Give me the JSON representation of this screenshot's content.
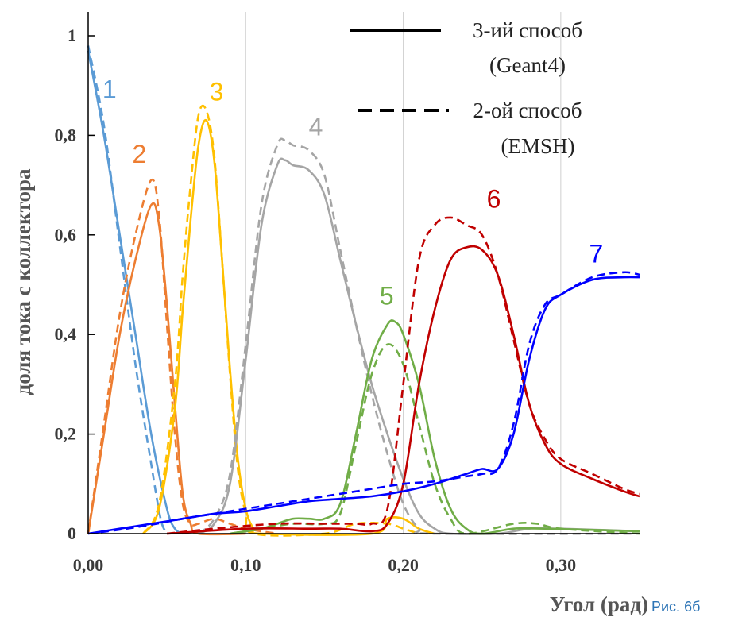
{
  "chart_data": {
    "type": "line",
    "xlabel": "Угол (рад)",
    "ylabel": "доля тока с коллектора",
    "caption": "Рис. 6б",
    "xlim": [
      0,
      0.35
    ],
    "ylim": [
      0,
      1.02
    ],
    "x_ticks": [
      0.0,
      0.1,
      0.2,
      0.3
    ],
    "x_tick_labels": [
      "0,00",
      "0,10",
      "0,20",
      "0,30"
    ],
    "y_ticks": [
      0,
      0.2,
      0.4,
      0.6,
      0.8,
      1.0
    ],
    "y_tick_labels": [
      "0",
      "0,2",
      "0,4",
      "0,6",
      "0,8",
      "1"
    ],
    "grid": "vertical",
    "legend": {
      "position": "top-right",
      "entries": [
        {
          "style": "solid",
          "line1": "3-ий способ",
          "line2": "(Geant4)"
        },
        {
          "style": "dashed",
          "line1": "2-ой способ",
          "line2": "(EMSH)"
        }
      ]
    },
    "series": [
      {
        "label": "1",
        "color": "#5b9bd5",
        "label_x": 0.009,
        "label_y": 0.875,
        "solid": [
          [
            0,
            0.97
          ],
          [
            0.01,
            0.8
          ],
          [
            0.02,
            0.6
          ],
          [
            0.03,
            0.4
          ],
          [
            0.04,
            0.2
          ],
          [
            0.05,
            0.05
          ],
          [
            0.055,
            0.01
          ],
          [
            0.06,
            0
          ]
        ],
        "dashed": [
          [
            0,
            0.98
          ],
          [
            0.01,
            0.82
          ],
          [
            0.02,
            0.58
          ],
          [
            0.03,
            0.34
          ],
          [
            0.04,
            0.14
          ],
          [
            0.046,
            0.03
          ],
          [
            0.05,
            0
          ]
        ]
      },
      {
        "label": "2",
        "color": "#ed7d31",
        "label_x": 0.028,
        "label_y": 0.745,
        "solid": [
          [
            0,
            0
          ],
          [
            0.01,
            0.2
          ],
          [
            0.02,
            0.4
          ],
          [
            0.03,
            0.55
          ],
          [
            0.04,
            0.66
          ],
          [
            0.045,
            0.62
          ],
          [
            0.05,
            0.46
          ],
          [
            0.055,
            0.26
          ],
          [
            0.06,
            0.08
          ],
          [
            0.065,
            0.02
          ],
          [
            0.07,
            0
          ],
          [
            0.1,
            0
          ]
        ],
        "dashed": [
          [
            0,
            0
          ],
          [
            0.01,
            0.22
          ],
          [
            0.02,
            0.44
          ],
          [
            0.03,
            0.6
          ],
          [
            0.04,
            0.71
          ],
          [
            0.045,
            0.64
          ],
          [
            0.05,
            0.42
          ],
          [
            0.055,
            0.2
          ],
          [
            0.06,
            0.06
          ],
          [
            0.065,
            0.02
          ],
          [
            0.07,
            0.02
          ],
          [
            0.08,
            0.03
          ],
          [
            0.09,
            0.02
          ],
          [
            0.1,
            0.01
          ],
          [
            0.12,
            0
          ]
        ]
      },
      {
        "label": "3",
        "color": "#ffc000",
        "label_x": 0.077,
        "label_y": 0.87,
        "solid": [
          [
            0.035,
            0
          ],
          [
            0.045,
            0.05
          ],
          [
            0.055,
            0.25
          ],
          [
            0.06,
            0.45
          ],
          [
            0.065,
            0.63
          ],
          [
            0.07,
            0.78
          ],
          [
            0.075,
            0.83
          ],
          [
            0.08,
            0.75
          ],
          [
            0.085,
            0.55
          ],
          [
            0.09,
            0.33
          ],
          [
            0.095,
            0.15
          ],
          [
            0.1,
            0.05
          ],
          [
            0.105,
            0.01
          ],
          [
            0.11,
            0
          ],
          [
            0.18,
            0
          ],
          [
            0.19,
            0.03
          ],
          [
            0.2,
            0.03
          ],
          [
            0.21,
            0.01
          ],
          [
            0.22,
            0
          ]
        ],
        "dashed": [
          [
            0.035,
            0
          ],
          [
            0.045,
            0.06
          ],
          [
            0.055,
            0.3
          ],
          [
            0.06,
            0.52
          ],
          [
            0.065,
            0.7
          ],
          [
            0.07,
            0.84
          ],
          [
            0.075,
            0.85
          ],
          [
            0.08,
            0.76
          ],
          [
            0.085,
            0.55
          ],
          [
            0.09,
            0.32
          ],
          [
            0.095,
            0.13
          ],
          [
            0.1,
            0.04
          ],
          [
            0.105,
            0
          ],
          [
            0.15,
            0
          ],
          [
            0.17,
            0.02
          ],
          [
            0.19,
            0.02
          ],
          [
            0.2,
            0.01
          ],
          [
            0.21,
            0
          ]
        ]
      },
      {
        "label": "4",
        "color": "#a5a5a5",
        "label_x": 0.14,
        "label_y": 0.8,
        "solid": [
          [
            0.07,
            0
          ],
          [
            0.08,
            0.02
          ],
          [
            0.09,
            0.1
          ],
          [
            0.1,
            0.35
          ],
          [
            0.11,
            0.62
          ],
          [
            0.12,
            0.74
          ],
          [
            0.125,
            0.75
          ],
          [
            0.13,
            0.74
          ],
          [
            0.14,
            0.73
          ],
          [
            0.15,
            0.68
          ],
          [
            0.16,
            0.55
          ],
          [
            0.17,
            0.42
          ],
          [
            0.18,
            0.3
          ],
          [
            0.19,
            0.2
          ],
          [
            0.2,
            0.11
          ],
          [
            0.21,
            0.04
          ],
          [
            0.22,
            0.01
          ],
          [
            0.23,
            0
          ],
          [
            0.26,
            0
          ],
          [
            0.28,
            0.01
          ],
          [
            0.3,
            0.01
          ],
          [
            0.35,
            0.005
          ]
        ],
        "dashed": [
          [
            0.07,
            0
          ],
          [
            0.08,
            0.03
          ],
          [
            0.09,
            0.12
          ],
          [
            0.1,
            0.38
          ],
          [
            0.11,
            0.66
          ],
          [
            0.12,
            0.78
          ],
          [
            0.125,
            0.79
          ],
          [
            0.13,
            0.78
          ],
          [
            0.14,
            0.77
          ],
          [
            0.15,
            0.72
          ],
          [
            0.16,
            0.57
          ],
          [
            0.17,
            0.42
          ],
          [
            0.18,
            0.28
          ],
          [
            0.19,
            0.16
          ],
          [
            0.2,
            0.06
          ],
          [
            0.21,
            0.01
          ],
          [
            0.22,
            0
          ],
          [
            0.35,
            0
          ]
        ]
      },
      {
        "label": "5",
        "color": "#70ad47",
        "label_x": 0.185,
        "label_y": 0.46,
        "solid": [
          [
            0.09,
            0
          ],
          [
            0.11,
            0.01
          ],
          [
            0.12,
            0.02
          ],
          [
            0.13,
            0.03
          ],
          [
            0.14,
            0.03
          ],
          [
            0.15,
            0.03
          ],
          [
            0.16,
            0.06
          ],
          [
            0.17,
            0.2
          ],
          [
            0.18,
            0.35
          ],
          [
            0.19,
            0.42
          ],
          [
            0.195,
            0.425
          ],
          [
            0.2,
            0.4
          ],
          [
            0.21,
            0.3
          ],
          [
            0.22,
            0.15
          ],
          [
            0.23,
            0.05
          ],
          [
            0.24,
            0.01
          ],
          [
            0.25,
            0
          ],
          [
            0.27,
            0.01
          ],
          [
            0.29,
            0.01
          ],
          [
            0.35,
            0.005
          ]
        ],
        "dashed": [
          [
            0.09,
            0
          ],
          [
            0.11,
            0.01
          ],
          [
            0.13,
            0.02
          ],
          [
            0.15,
            0.02
          ],
          [
            0.16,
            0.04
          ],
          [
            0.17,
            0.18
          ],
          [
            0.18,
            0.32
          ],
          [
            0.19,
            0.38
          ],
          [
            0.2,
            0.34
          ],
          [
            0.21,
            0.22
          ],
          [
            0.22,
            0.1
          ],
          [
            0.23,
            0.03
          ],
          [
            0.24,
            0
          ],
          [
            0.27,
            0.02
          ],
          [
            0.285,
            0.02
          ],
          [
            0.3,
            0.01
          ],
          [
            0.35,
            0
          ]
        ]
      },
      {
        "label": "6",
        "color": "#c00000",
        "label_x": 0.253,
        "label_y": 0.655,
        "solid": [
          [
            0.05,
            0
          ],
          [
            0.1,
            0.01
          ],
          [
            0.14,
            0.01
          ],
          [
            0.16,
            0.01
          ],
          [
            0.18,
            0.005
          ],
          [
            0.19,
            0.02
          ],
          [
            0.2,
            0.1
          ],
          [
            0.21,
            0.3
          ],
          [
            0.22,
            0.45
          ],
          [
            0.23,
            0.55
          ],
          [
            0.24,
            0.575
          ],
          [
            0.25,
            0.57
          ],
          [
            0.26,
            0.52
          ],
          [
            0.27,
            0.4
          ],
          [
            0.28,
            0.26
          ],
          [
            0.29,
            0.18
          ],
          [
            0.3,
            0.14
          ],
          [
            0.32,
            0.11
          ],
          [
            0.34,
            0.085
          ],
          [
            0.35,
            0.075
          ]
        ],
        "dashed": [
          [
            0.05,
            0
          ],
          [
            0.08,
            0.01
          ],
          [
            0.12,
            0.02
          ],
          [
            0.15,
            0.02
          ],
          [
            0.17,
            0.02
          ],
          [
            0.18,
            0.02
          ],
          [
            0.19,
            0.05
          ],
          [
            0.2,
            0.3
          ],
          [
            0.21,
            0.55
          ],
          [
            0.22,
            0.62
          ],
          [
            0.23,
            0.635
          ],
          [
            0.24,
            0.62
          ],
          [
            0.25,
            0.6
          ],
          [
            0.26,
            0.52
          ],
          [
            0.27,
            0.39
          ],
          [
            0.28,
            0.26
          ],
          [
            0.29,
            0.19
          ],
          [
            0.3,
            0.15
          ],
          [
            0.32,
            0.12
          ],
          [
            0.34,
            0.09
          ],
          [
            0.35,
            0.08
          ]
        ]
      },
      {
        "label": "7",
        "color": "#0000ff",
        "label_x": 0.318,
        "label_y": 0.545,
        "solid": [
          [
            0,
            0
          ],
          [
            0.02,
            0.01
          ],
          [
            0.04,
            0.02
          ],
          [
            0.06,
            0.03
          ],
          [
            0.08,
            0.04
          ],
          [
            0.1,
            0.045
          ],
          [
            0.12,
            0.055
          ],
          [
            0.14,
            0.065
          ],
          [
            0.16,
            0.07
          ],
          [
            0.18,
            0.075
          ],
          [
            0.2,
            0.085
          ],
          [
            0.22,
            0.1
          ],
          [
            0.24,
            0.12
          ],
          [
            0.25,
            0.13
          ],
          [
            0.26,
            0.13
          ],
          [
            0.27,
            0.2
          ],
          [
            0.28,
            0.35
          ],
          [
            0.29,
            0.45
          ],
          [
            0.3,
            0.48
          ],
          [
            0.32,
            0.51
          ],
          [
            0.34,
            0.515
          ],
          [
            0.35,
            0.515
          ]
        ],
        "dashed": [
          [
            0,
            0
          ],
          [
            0.02,
            0.008
          ],
          [
            0.04,
            0.018
          ],
          [
            0.06,
            0.03
          ],
          [
            0.08,
            0.04
          ],
          [
            0.1,
            0.05
          ],
          [
            0.12,
            0.06
          ],
          [
            0.14,
            0.07
          ],
          [
            0.16,
            0.08
          ],
          [
            0.18,
            0.09
          ],
          [
            0.2,
            0.1
          ],
          [
            0.22,
            0.105
          ],
          [
            0.24,
            0.115
          ],
          [
            0.25,
            0.12
          ],
          [
            0.26,
            0.13
          ],
          [
            0.27,
            0.22
          ],
          [
            0.28,
            0.38
          ],
          [
            0.29,
            0.46
          ],
          [
            0.3,
            0.48
          ],
          [
            0.32,
            0.515
          ],
          [
            0.34,
            0.525
          ],
          [
            0.35,
            0.52
          ]
        ]
      }
    ]
  }
}
